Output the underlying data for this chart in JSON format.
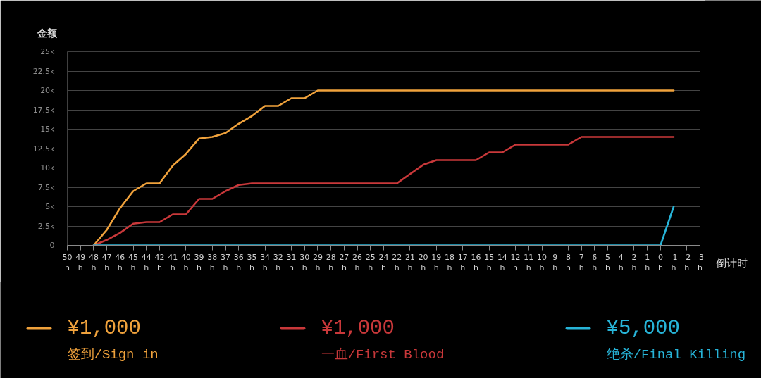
{
  "chart_data": {
    "type": "line",
    "ylabel": "金额",
    "xlabel": "倒计时",
    "categories": [
      "50\nh",
      "49\nh",
      "48\nh",
      "47\nh",
      "46\nh",
      "45\nh",
      "44\nh",
      "42\nh",
      "41\nh",
      "40\nh",
      "39\nh",
      "38\nh",
      "37\nh",
      "36\nh",
      "35\nh",
      "34\nh",
      "32\nh",
      "31\nh",
      "30\nh",
      "29\nh",
      "28\nh",
      "27\nh",
      "26\nh",
      "25\nh",
      "24\nh",
      "22\nh",
      "21\nh",
      "20\nh",
      "19\nh",
      "18\nh",
      "17\nh",
      "16\nh",
      "15\nh",
      "14\nh",
      "12\nh",
      "11\nh",
      "10\nh",
      "9\nh",
      "8\nh",
      "7\nh",
      "6\nh",
      "5\nh",
      "4\nh",
      "2\nh",
      "1\nh",
      "0\nh",
      "-1\nh",
      "-2\nh",
      "-3\nh"
    ],
    "series": [
      {
        "name": "签到/Sign in",
        "color": "#f0a23c",
        "values": [
          null,
          null,
          0,
          2000,
          4800,
          7000,
          8000,
          8000,
          10300,
          11800,
          13800,
          14000,
          14500,
          15700,
          16700,
          18000,
          18000,
          19000,
          19000,
          20000,
          20000,
          20000,
          20000,
          20000,
          20000,
          20000,
          20000,
          20000,
          20000,
          20000,
          20000,
          20000,
          20000,
          20000,
          20000,
          20000,
          20000,
          20000,
          20000,
          20000,
          20000,
          20000,
          20000,
          20000,
          20000,
          20000,
          20000,
          null,
          null
        ]
      },
      {
        "name": "一血/First Blood",
        "color": "#c9383a",
        "values": [
          null,
          null,
          0,
          700,
          1600,
          2800,
          3000,
          3000,
          4000,
          4000,
          6000,
          6000,
          7000,
          7800,
          8000,
          8000,
          8000,
          8000,
          8000,
          8000,
          8000,
          8000,
          8000,
          8000,
          8000,
          8000,
          9200,
          10400,
          11000,
          11000,
          11000,
          11000,
          12000,
          12000,
          13000,
          13000,
          13000,
          13000,
          13000,
          14000,
          14000,
          14000,
          14000,
          14000,
          14000,
          14000,
          14000,
          null,
          null
        ]
      },
      {
        "name": "绝杀/Final Killing",
        "color": "#27b4d8",
        "values": [
          null,
          null,
          0,
          0,
          0,
          0,
          0,
          0,
          0,
          0,
          0,
          0,
          0,
          0,
          0,
          0,
          0,
          0,
          0,
          0,
          0,
          0,
          0,
          0,
          0,
          0,
          0,
          0,
          0,
          0,
          0,
          0,
          0,
          0,
          0,
          0,
          0,
          0,
          0,
          0,
          0,
          0,
          0,
          0,
          0,
          0,
          5000,
          null,
          null
        ]
      }
    ],
    "ylim": [
      0,
      25000
    ],
    "yticks": [
      0,
      {
        "value": 2500,
        "label": "2.5k"
      },
      {
        "value": 5000,
        "label": "5k"
      },
      {
        "value": 7500,
        "label": "7.5k"
      },
      {
        "value": 10000,
        "label": "10k"
      },
      {
        "value": 12500,
        "label": "12.5k"
      },
      {
        "value": 15000,
        "label": "15k"
      },
      {
        "value": 17500,
        "label": "17.5k"
      },
      {
        "value": 20000,
        "label": "20k"
      },
      {
        "value": 22500,
        "label": "22.5k"
      },
      {
        "value": 25000,
        "label": "25k"
      }
    ],
    "grid": "y",
    "legend": "bottom",
    "annotations": [
      "¥1,000",
      "¥1,000",
      "¥5,000"
    ]
  }
}
